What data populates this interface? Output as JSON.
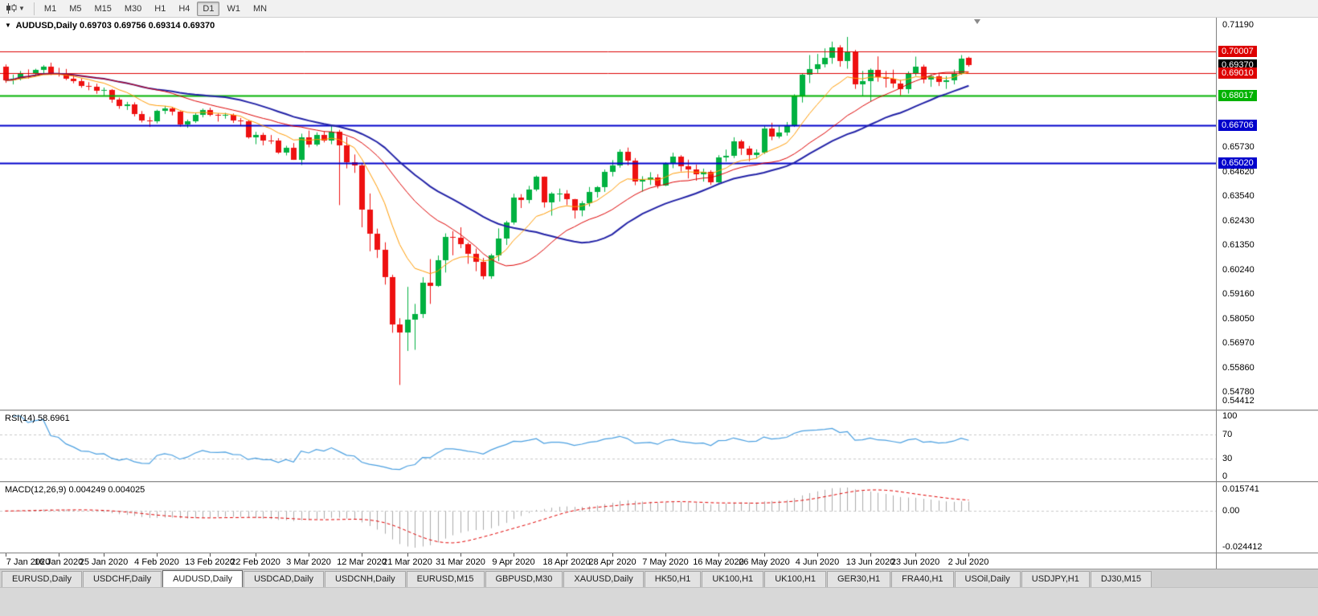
{
  "toolbar": {
    "timeframes": [
      "M1",
      "M5",
      "M15",
      "M30",
      "H1",
      "H4",
      "D1",
      "W1",
      "MN"
    ],
    "active_timeframe": "D1"
  },
  "main_chart": {
    "symbol_label": "AUDUSD,Daily",
    "ohlc_text": "0.69703 0.69756 0.69314 0.69370"
  },
  "chart_data": {
    "type": "candlestick",
    "symbol": "AUDUSD",
    "period": "Daily",
    "ylim": [
      0.54,
      0.715
    ],
    "candle_colors": {
      "up": "#00b140",
      "down": "#ee1111"
    },
    "x_labels": [
      "7 Jan 2020",
      "16 Jan 2020",
      "25 Jan 2020",
      "4 Feb 2020",
      "13 Feb 2020",
      "22 Feb 2020",
      "3 Mar 2020",
      "12 Mar 2020",
      "21 Mar 2020",
      "31 Mar 2020",
      "9 Apr 2020",
      "18 Apr 2020",
      "28 Apr 2020",
      "7 May 2020",
      "16 May 2020",
      "26 May 2020",
      "4 Jun 2020",
      "13 Jun 2020",
      "23 Jun 2020",
      "2 Jul 2020"
    ],
    "y_ticks": [
      "0.71190",
      "0.65730",
      "0.64620",
      "0.63540",
      "0.62430",
      "0.61350",
      "0.60240",
      "0.59160",
      "0.58050",
      "0.56970",
      "0.55860",
      "0.54780",
      "0.54412"
    ],
    "price_badges": [
      {
        "price": 0.70007,
        "label": "0.70007",
        "color": "#dd0000",
        "line": true,
        "line_width": 1
      },
      {
        "price": 0.6937,
        "label": "0.69370",
        "color": "#000000",
        "line": false,
        "line_width": 0
      },
      {
        "price": 0.6901,
        "label": "0.69010",
        "color": "#dd0000",
        "line": true,
        "line_width": 1
      },
      {
        "price": 0.68017,
        "label": "0.68017",
        "color": "#00b200",
        "line": true,
        "line_width": 2
      },
      {
        "price": 0.66706,
        "label": "0.66706",
        "color": "#0000cc",
        "line": true,
        "line_width": 2
      },
      {
        "price": 0.6502,
        "label": "0.65020",
        "color": "#0000cc",
        "line": true,
        "line_width": 2
      }
    ],
    "moving_averages": [
      {
        "method": "sma",
        "period": 30,
        "color": "#2222a6",
        "width": 2
      },
      {
        "method": "ema",
        "period": 10,
        "color": "#ff9a00",
        "width": 1
      },
      {
        "method": "sma",
        "period": 20,
        "color": "#dd0000",
        "width": 1
      }
    ],
    "ohlc": [
      [
        0.6932,
        0.6941,
        0.6859,
        0.687
      ],
      [
        0.687,
        0.6896,
        0.6852,
        0.6876
      ],
      [
        0.6876,
        0.6912,
        0.687,
        0.6903
      ],
      [
        0.6903,
        0.6919,
        0.6878,
        0.6899
      ],
      [
        0.6899,
        0.6922,
        0.6889,
        0.6916
      ],
      [
        0.6916,
        0.6938,
        0.6902,
        0.693
      ],
      [
        0.693,
        0.6949,
        0.6894,
        0.6903
      ],
      [
        0.6903,
        0.6926,
        0.6887,
        0.6899
      ],
      [
        0.6899,
        0.6921,
        0.6871,
        0.6879
      ],
      [
        0.6879,
        0.6894,
        0.6857,
        0.6866
      ],
      [
        0.6866,
        0.6878,
        0.6837,
        0.6845
      ],
      [
        0.6845,
        0.6862,
        0.6826,
        0.6843
      ],
      [
        0.6843,
        0.6855,
        0.681,
        0.6824
      ],
      [
        0.6824,
        0.6838,
        0.6803,
        0.6826
      ],
      [
        0.6826,
        0.6831,
        0.677,
        0.6783
      ],
      [
        0.6783,
        0.6793,
        0.6743,
        0.6756
      ],
      [
        0.6756,
        0.6774,
        0.6738,
        0.6764
      ],
      [
        0.6764,
        0.6772,
        0.6709,
        0.672
      ],
      [
        0.672,
        0.6733,
        0.6682,
        0.6691
      ],
      [
        0.6691,
        0.6707,
        0.6662,
        0.6688
      ],
      [
        0.6688,
        0.6739,
        0.6678,
        0.6734
      ],
      [
        0.6734,
        0.6756,
        0.672,
        0.6746
      ],
      [
        0.6746,
        0.6752,
        0.6714,
        0.6729
      ],
      [
        0.6729,
        0.6733,
        0.6663,
        0.6672
      ],
      [
        0.6672,
        0.6695,
        0.6658,
        0.6686
      ],
      [
        0.6686,
        0.6723,
        0.668,
        0.6715
      ],
      [
        0.6715,
        0.6744,
        0.6705,
        0.6737
      ],
      [
        0.6737,
        0.6748,
        0.671,
        0.6717
      ],
      [
        0.6717,
        0.6723,
        0.6686,
        0.6713
      ],
      [
        0.6713,
        0.6725,
        0.6699,
        0.6716
      ],
      [
        0.6716,
        0.6722,
        0.668,
        0.669
      ],
      [
        0.669,
        0.6702,
        0.6668,
        0.6686
      ],
      [
        0.6686,
        0.6692,
        0.661,
        0.6617
      ],
      [
        0.6617,
        0.664,
        0.6585,
        0.6627
      ],
      [
        0.6627,
        0.6636,
        0.658,
        0.6601
      ],
      [
        0.6601,
        0.6626,
        0.6586,
        0.66
      ],
      [
        0.66,
        0.6612,
        0.6542,
        0.6549
      ],
      [
        0.6549,
        0.6578,
        0.6535,
        0.6568
      ],
      [
        0.6568,
        0.659,
        0.6515,
        0.6517
      ],
      [
        0.6517,
        0.6632,
        0.6492,
        0.6615
      ],
      [
        0.6615,
        0.6646,
        0.6571,
        0.6585
      ],
      [
        0.6585,
        0.6638,
        0.6576,
        0.6625
      ],
      [
        0.6625,
        0.6642,
        0.6593,
        0.6601
      ],
      [
        0.6601,
        0.6672,
        0.6585,
        0.664
      ],
      [
        0.664,
        0.6649,
        0.6313,
        0.6581
      ],
      [
        0.6581,
        0.6618,
        0.6477,
        0.6505
      ],
      [
        0.6505,
        0.6539,
        0.6457,
        0.6489
      ],
      [
        0.6489,
        0.6498,
        0.6214,
        0.6292
      ],
      [
        0.6292,
        0.6365,
        0.6107,
        0.6186
      ],
      [
        0.6186,
        0.6208,
        0.6077,
        0.6113
      ],
      [
        0.6113,
        0.6147,
        0.5958,
        0.5992
      ],
      [
        0.5992,
        0.6002,
        0.5743,
        0.5781
      ],
      [
        0.5781,
        0.5808,
        0.551,
        0.5744
      ],
      [
        0.5744,
        0.5948,
        0.5662,
        0.5803
      ],
      [
        0.5803,
        0.5872,
        0.5667,
        0.5827
      ],
      [
        0.5827,
        0.5991,
        0.5809,
        0.5967
      ],
      [
        0.5967,
        0.6072,
        0.5872,
        0.5954
      ],
      [
        0.5954,
        0.6088,
        0.5948,
        0.6066
      ],
      [
        0.6066,
        0.6187,
        0.6012,
        0.6172
      ],
      [
        0.6172,
        0.6197,
        0.6089,
        0.6168
      ],
      [
        0.6168,
        0.6214,
        0.6121,
        0.6137
      ],
      [
        0.6137,
        0.6146,
        0.6051,
        0.6094
      ],
      [
        0.6094,
        0.6119,
        0.6018,
        0.6061
      ],
      [
        0.6061,
        0.6077,
        0.5982,
        0.5997
      ],
      [
        0.5997,
        0.6096,
        0.5984,
        0.6087
      ],
      [
        0.6087,
        0.6209,
        0.6063,
        0.6165
      ],
      [
        0.6165,
        0.6243,
        0.6135,
        0.6234
      ],
      [
        0.6234,
        0.6364,
        0.6226,
        0.6346
      ],
      [
        0.6346,
        0.6362,
        0.63,
        0.6336
      ],
      [
        0.6336,
        0.6399,
        0.6321,
        0.6382
      ],
      [
        0.6382,
        0.6445,
        0.6375,
        0.6439
      ],
      [
        0.6439,
        0.6441,
        0.6302,
        0.6324
      ],
      [
        0.6324,
        0.6371,
        0.6266,
        0.6363
      ],
      [
        0.6363,
        0.6387,
        0.6329,
        0.6364
      ],
      [
        0.6364,
        0.638,
        0.6313,
        0.6339
      ],
      [
        0.6339,
        0.6341,
        0.6253,
        0.6288
      ],
      [
        0.6288,
        0.6331,
        0.6263,
        0.6321
      ],
      [
        0.6321,
        0.6394,
        0.6307,
        0.6372
      ],
      [
        0.6372,
        0.6398,
        0.6347,
        0.6394
      ],
      [
        0.6394,
        0.6472,
        0.6372,
        0.6463
      ],
      [
        0.6463,
        0.6514,
        0.6441,
        0.6489
      ],
      [
        0.6489,
        0.6562,
        0.648,
        0.6551
      ],
      [
        0.6551,
        0.657,
        0.649,
        0.6511
      ],
      [
        0.6511,
        0.6523,
        0.6402,
        0.6417
      ],
      [
        0.6417,
        0.6442,
        0.6373,
        0.6427
      ],
      [
        0.6427,
        0.646,
        0.6403,
        0.6438
      ],
      [
        0.6438,
        0.6451,
        0.6388,
        0.6402
      ],
      [
        0.6402,
        0.6504,
        0.6398,
        0.6496
      ],
      [
        0.6496,
        0.6547,
        0.6478,
        0.6528
      ],
      [
        0.6528,
        0.6536,
        0.6463,
        0.6487
      ],
      [
        0.6487,
        0.6516,
        0.6432,
        0.6471
      ],
      [
        0.6471,
        0.6494,
        0.6422,
        0.6452
      ],
      [
        0.6452,
        0.6476,
        0.6418,
        0.6462
      ],
      [
        0.6462,
        0.6469,
        0.6403,
        0.6416
      ],
      [
        0.6416,
        0.6536,
        0.6412,
        0.6527
      ],
      [
        0.6527,
        0.6561,
        0.6507,
        0.6532
      ],
      [
        0.6532,
        0.6616,
        0.6523,
        0.6597
      ],
      [
        0.6597,
        0.6605,
        0.6537,
        0.6566
      ],
      [
        0.6566,
        0.6577,
        0.6509,
        0.6535
      ],
      [
        0.6535,
        0.6562,
        0.6522,
        0.6546
      ],
      [
        0.6546,
        0.6666,
        0.6541,
        0.6655
      ],
      [
        0.6655,
        0.6681,
        0.6603,
        0.6621
      ],
      [
        0.6621,
        0.6668,
        0.6611,
        0.6637
      ],
      [
        0.6637,
        0.6684,
        0.6623,
        0.6667
      ],
      [
        0.6667,
        0.6808,
        0.6662,
        0.6797
      ],
      [
        0.6797,
        0.6899,
        0.6771,
        0.6894
      ],
      [
        0.6894,
        0.6983,
        0.6858,
        0.6921
      ],
      [
        0.6921,
        0.6988,
        0.6903,
        0.6941
      ],
      [
        0.6941,
        0.7013,
        0.6928,
        0.6969
      ],
      [
        0.6969,
        0.7043,
        0.6944,
        0.7016
      ],
      [
        0.7016,
        0.7027,
        0.6931,
        0.6958
      ],
      [
        0.6958,
        0.7064,
        0.6922,
        0.7
      ],
      [
        0.7,
        0.7006,
        0.6832,
        0.6852
      ],
      [
        0.6852,
        0.6912,
        0.6799,
        0.6866
      ],
      [
        0.6866,
        0.6923,
        0.6776,
        0.6918
      ],
      [
        0.6918,
        0.6977,
        0.6864,
        0.6884
      ],
      [
        0.6884,
        0.6912,
        0.6838,
        0.6879
      ],
      [
        0.6879,
        0.6918,
        0.6836,
        0.6855
      ],
      [
        0.6855,
        0.6872,
        0.6803,
        0.6832
      ],
      [
        0.6832,
        0.691,
        0.6811,
        0.6904
      ],
      [
        0.6904,
        0.6976,
        0.689,
        0.6932
      ],
      [
        0.6932,
        0.694,
        0.6857,
        0.6873
      ],
      [
        0.6873,
        0.6897,
        0.6841,
        0.6887
      ],
      [
        0.6887,
        0.6898,
        0.6845,
        0.6864
      ],
      [
        0.6864,
        0.6889,
        0.6832,
        0.6872
      ],
      [
        0.6872,
        0.6918,
        0.6852,
        0.6903
      ],
      [
        0.6903,
        0.6983,
        0.6895,
        0.6967
      ],
      [
        0.69703,
        0.69756,
        0.69314,
        0.6937
      ]
    ]
  },
  "rsi_panel": {
    "name": "RSI(14)",
    "value": "58.6961",
    "period": 14,
    "color": "#4a9fe0",
    "levels": [
      70,
      30
    ],
    "range": [
      0,
      100
    ],
    "axis_labels": [
      "100",
      "70",
      "30",
      "0"
    ]
  },
  "macd_panel": {
    "name": "MACD(12,26,9)",
    "values": "0.004249 0.004025",
    "fast": 12,
    "slow": 26,
    "signal": 9,
    "histogram_color": "#ababab",
    "signal_color": "#e00000",
    "axis_labels": [
      "0.015741",
      "0.00",
      "-0.024412"
    ]
  },
  "bottom_tabs": {
    "items": [
      "EURUSD,Daily",
      "USDCHF,Daily",
      "AUDUSD,Daily",
      "USDCAD,Daily",
      "USDCNH,Daily",
      "EURUSD,M15",
      "GBPUSD,M30",
      "XAUUSD,Daily",
      "HK50,H1",
      "UK100,H1",
      "UK100,H1",
      "GER30,H1",
      "FRA40,H1",
      "USOil,Daily",
      "USDJPY,H1",
      "DJ30,M15"
    ],
    "active_index": 2
  }
}
